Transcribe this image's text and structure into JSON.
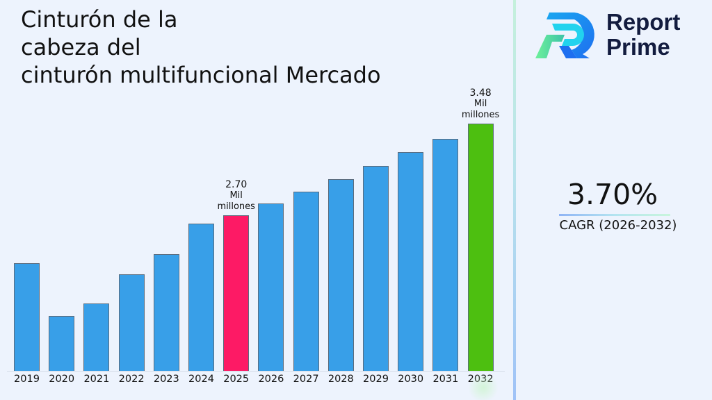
{
  "title": {
    "line1": "Cinturón de la",
    "line2": "cabeza del",
    "line3": "cinturón multifuncional Mercado"
  },
  "brand": {
    "name_line1": "Report",
    "name_line2": "Prime",
    "icon": "report-prime-logo-icon"
  },
  "cagr": {
    "value": "3.70%",
    "label": "CAGR (2026-2032)"
  },
  "annotations": [
    {
      "year": "2025",
      "value": "2.70",
      "unit_line1": "Mil",
      "unit_line2": "millones"
    },
    {
      "year": "2032",
      "value": "3.48",
      "unit_line1": "Mil",
      "unit_line2": "millones"
    }
  ],
  "colors": {
    "default_bar": "#389fe8",
    "base_year_bar": "#fd1a65",
    "final_year_bar": "#4dbf10",
    "background": "#edf3fd",
    "brand_text": "#131c3f"
  },
  "chart_data": {
    "type": "bar",
    "title": "Cinturón de la cabeza del cinturón multifuncional Mercado",
    "xlabel": "",
    "ylabel": "Mil millones",
    "categories": [
      "2019",
      "2020",
      "2021",
      "2022",
      "2023",
      "2024",
      "2025",
      "2026",
      "2027",
      "2028",
      "2029",
      "2030",
      "2031",
      "2032"
    ],
    "values": [
      2.29,
      1.84,
      1.95,
      2.2,
      2.37,
      2.63,
      2.7,
      2.8,
      2.9,
      3.01,
      3.12,
      3.24,
      3.35,
      3.48
    ],
    "highlight": {
      "2025": "#fd1a65",
      "2032": "#4dbf10"
    },
    "data_labels": {
      "2025": "2.70 Mil millones",
      "2032": "3.48 Mil millones"
    },
    "cagr": "3.70%",
    "cagr_period": "2026-2032",
    "grid": false,
    "legend": "none",
    "y_axis_visible": false
  }
}
